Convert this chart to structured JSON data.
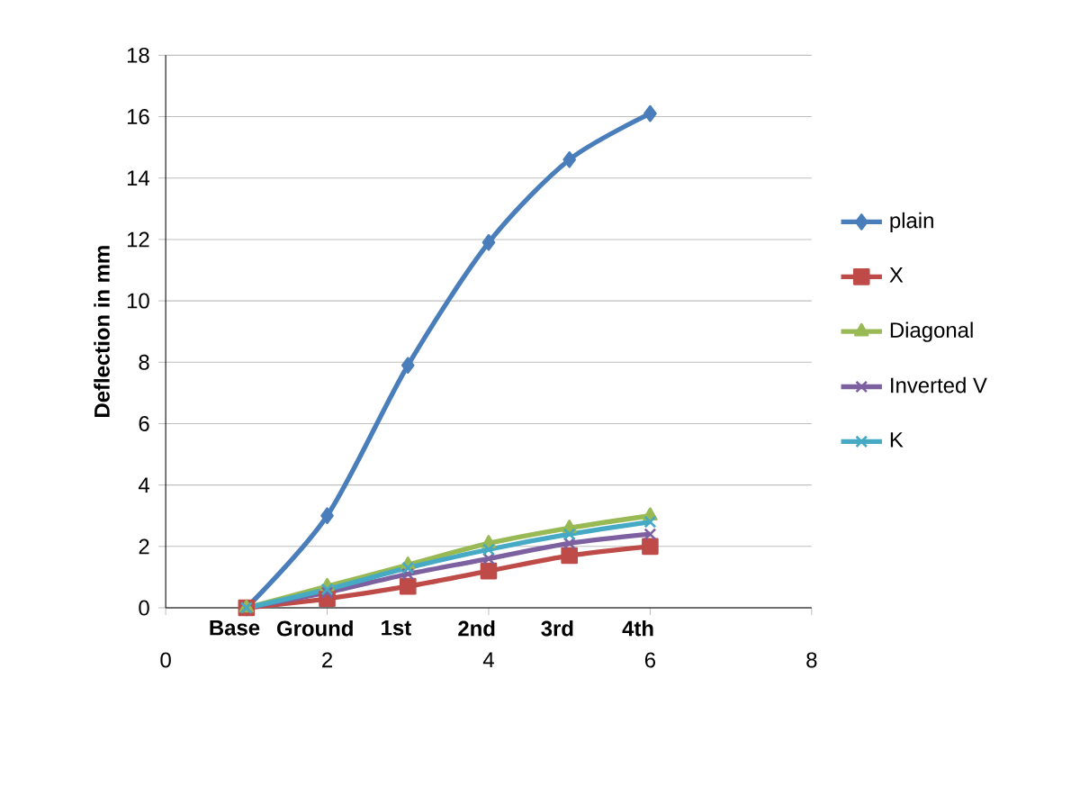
{
  "chart_data": {
    "type": "line",
    "ylabel": "Deflection in mm",
    "x": [
      1,
      2,
      3,
      4,
      5,
      6
    ],
    "series": [
      {
        "name": "plain",
        "color": "#4a7ebb",
        "marker": "diamond",
        "values": [
          0,
          3,
          7.9,
          11.9,
          14.6,
          16.1
        ]
      },
      {
        "name": "X",
        "color": "#be4b48",
        "marker": "square",
        "values": [
          0,
          0.3,
          0.7,
          1.2,
          1.7,
          2.0
        ]
      },
      {
        "name": "Diagonal",
        "color": "#98b954",
        "marker": "triangle",
        "values": [
          0,
          0.7,
          1.4,
          2.1,
          2.6,
          3.0
        ]
      },
      {
        "name": "Inverted V",
        "color": "#7d60a0",
        "marker": "cross",
        "values": [
          0,
          0.5,
          1.1,
          1.6,
          2.1,
          2.4
        ]
      },
      {
        "name": "K",
        "color": "#46aac5",
        "marker": "cross",
        "values": [
          0,
          0.6,
          1.3,
          1.9,
          2.4,
          2.8
        ]
      }
    ],
    "xlim": [
      0,
      8
    ],
    "xticks": [
      0,
      2,
      4,
      6,
      8
    ],
    "ylim": [
      0,
      18
    ],
    "yticks": [
      0,
      2,
      4,
      6,
      8,
      10,
      12,
      14,
      16,
      18
    ],
    "grid": "y",
    "legend": "right",
    "line_style": "solid",
    "annotations": [
      "Base",
      "Ground",
      "1st",
      "2nd",
      "3rd",
      "4th"
    ]
  }
}
